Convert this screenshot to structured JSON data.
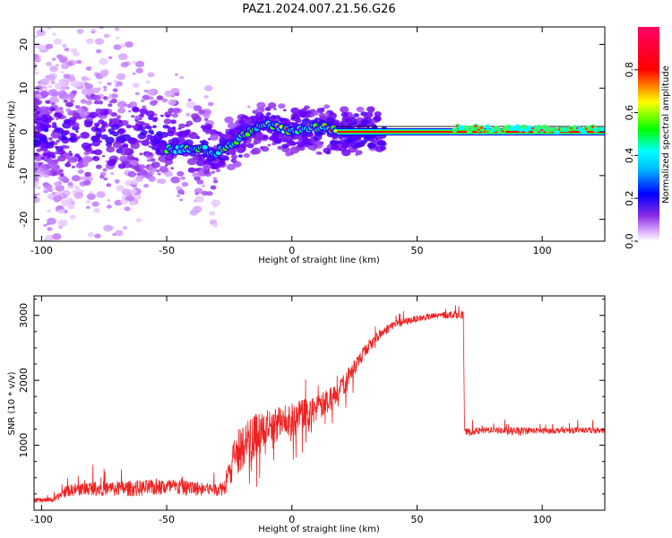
{
  "title": "PAZ1.2024.007.21.56.G26",
  "chart_data": [
    {
      "type": "heatmap",
      "xlabel": "Height of straight line (km)",
      "ylabel": "Frequency (Hz)",
      "xlim": [
        -103,
        125
      ],
      "ylim": [
        -25,
        24
      ],
      "xticks": [
        -100,
        -50,
        0,
        50,
        100
      ],
      "yticks": [
        -20,
        -10,
        0,
        10,
        20
      ],
      "colorbar": {
        "label": "Normalized spectral amplitude",
        "range": [
          0,
          1
        ],
        "ticks": [
          0.0,
          0.2,
          0.4,
          0.6,
          0.8
        ],
        "colormap": [
          "#ffffff",
          "#cc66ff",
          "#6a00ff",
          "#0000ff",
          "#00ffff",
          "#00ff00",
          "#ffff00",
          "#ff0000",
          "#ff0066"
        ]
      },
      "trace": {
        "description_points_x": [
          -45,
          -35,
          -30,
          -25,
          -20,
          -15,
          -10,
          -5,
          0,
          5,
          10,
          15,
          18,
          125
        ],
        "description_points_y": [
          -4,
          -4,
          -5,
          -3,
          -1,
          1,
          2,
          1,
          0,
          1,
          1,
          1,
          0,
          0
        ]
      }
    },
    {
      "type": "line",
      "xlabel": "Height of straight line (km)",
      "ylabel": "SNR (10 * v/v)",
      "xlim": [
        -103,
        125
      ],
      "ylim": [
        0,
        3300
      ],
      "xticks": [
        -100,
        -50,
        0,
        50,
        100
      ],
      "yticks": [
        1000,
        2000,
        3000
      ],
      "series_color": "#ee2222",
      "envelope": {
        "x": [
          -103,
          -95,
          -90,
          -80,
          -70,
          -60,
          -50,
          -40,
          -30,
          -27,
          -22,
          -15,
          -10,
          -5,
          0,
          5,
          10,
          15,
          20,
          25,
          30,
          35,
          40,
          45,
          50,
          55,
          60,
          65,
          68.5,
          69,
          75,
          80,
          85,
          90,
          95,
          100,
          110,
          125
        ],
        "mean": [
          150,
          160,
          300,
          340,
          330,
          340,
          360,
          340,
          320,
          350,
          900,
          1150,
          1250,
          1350,
          1400,
          1500,
          1550,
          1700,
          1900,
          2200,
          2500,
          2700,
          2850,
          2900,
          2950,
          2980,
          3000,
          3020,
          3000,
          1200,
          1220,
          1240,
          1220,
          1210,
          1230,
          1220,
          1230,
          1230
        ],
        "spread": [
          70,
          70,
          180,
          220,
          240,
          250,
          260,
          230,
          200,
          250,
          700,
          650,
          600,
          550,
          500,
          450,
          420,
          380,
          320,
          260,
          200,
          160,
          140,
          110,
          100,
          100,
          110,
          120,
          120,
          110,
          110,
          100,
          120,
          140,
          100,
          90,
          90,
          90
        ]
      }
    }
  ]
}
